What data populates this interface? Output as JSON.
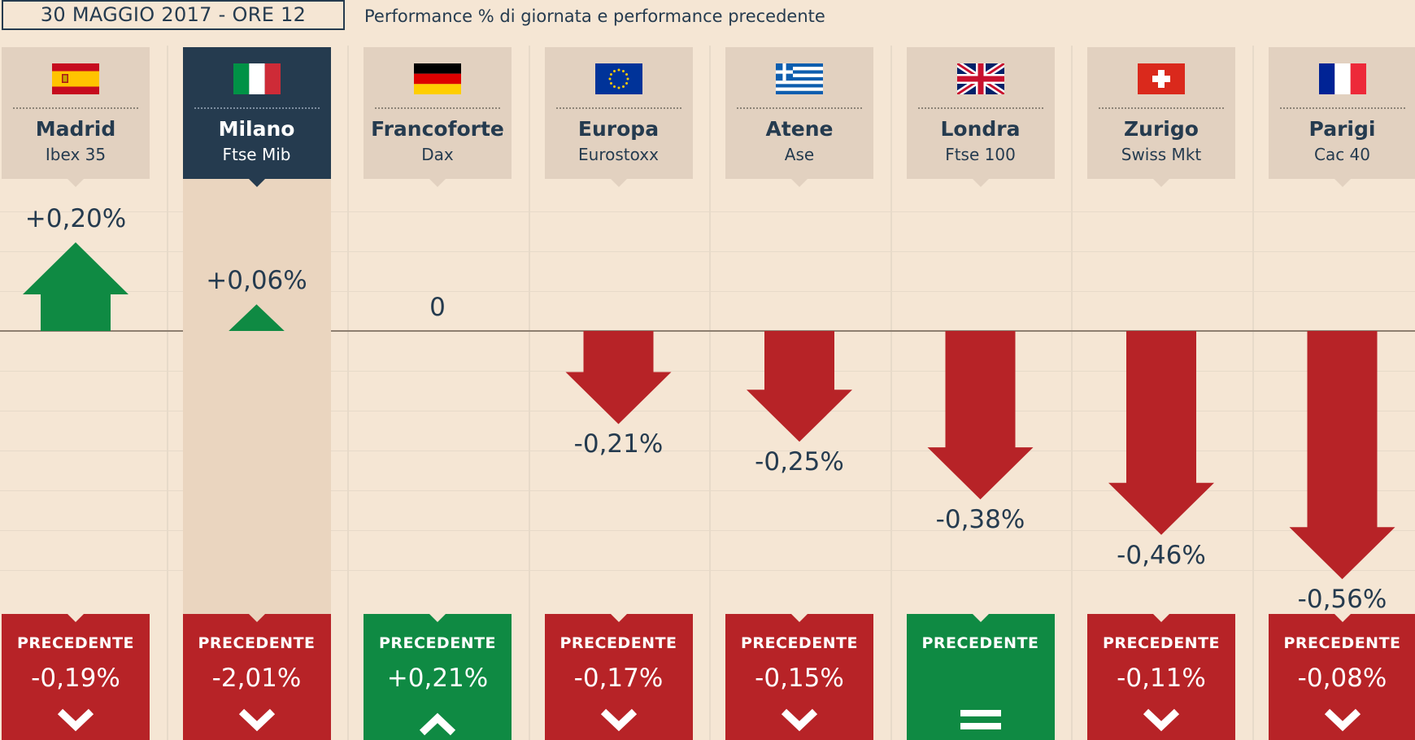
{
  "header": {
    "date": "30 MAGGIO 2017 - ORE 12",
    "subtitle": "Performance % di giornata e performance precedente"
  },
  "colors": {
    "background": "#f5e6d4",
    "text": "#253b4f",
    "positive": "#0f8a43",
    "negative": "#b72327",
    "card": "#e2d1c0",
    "card_active": "#253b4f"
  },
  "chart_data": {
    "type": "bar",
    "categories": [
      "Madrid",
      "Milano",
      "Francoforte",
      "Europa",
      "Atene",
      "Londra",
      "Zurigo",
      "Parigi"
    ],
    "indices": [
      "Ibex 35",
      "Ftse Mib",
      "Dax",
      "Eurostoxx",
      "Ase",
      "Ftse 100",
      "Swiss Mkt",
      "Cac 40"
    ],
    "flags": [
      "spain-flag",
      "italy-flag",
      "germany-flag",
      "eu-flag",
      "greece-flag",
      "uk-flag",
      "switzerland-flag",
      "france-flag"
    ],
    "highlighted": "Milano",
    "series": [
      {
        "values": [
          0.2,
          0.06,
          0,
          -0.21,
          -0.25,
          -0.38,
          -0.46,
          -0.56
        ],
        "labels": [
          "+0,20%",
          "+0,06%",
          "0",
          "-0,21%",
          "-0,25%",
          "-0,38%",
          "-0,46%",
          "-0,56%"
        ]
      }
    ],
    "previous_label": "PRECEDENTE",
    "previous": {
      "values": [
        -0.19,
        -2.01,
        0.21,
        -0.17,
        -0.15,
        0,
        -0.11,
        -0.08
      ],
      "labels": [
        "-0,19%",
        "-2,01%",
        "+0,21%",
        "-0,17%",
        "-0,15%",
        "",
        "-0,11%",
        "-0,08%"
      ],
      "directions": [
        "down",
        "down",
        "up",
        "down",
        "down",
        "equal",
        "down",
        "down"
      ]
    },
    "ylim": [
      -0.6,
      0.3
    ],
    "grid": true
  }
}
